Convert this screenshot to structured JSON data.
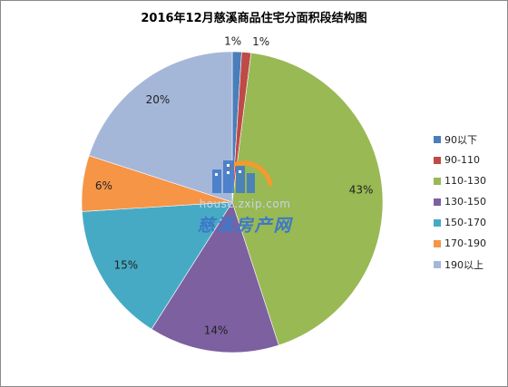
{
  "chart_data": {
    "type": "pie",
    "title": "2016年12月慈溪商品住宅分面积段结构图",
    "categories": [
      "90以下",
      "90-110",
      "110-130",
      "130-150",
      "150-170",
      "170-190",
      "190以上"
    ],
    "values": [
      1,
      1,
      43,
      14,
      15,
      6,
      20
    ],
    "labels": [
      "1%",
      "1%",
      "43%",
      "14%",
      "15%",
      "6%",
      "20%"
    ],
    "colors": [
      "#4a7ebb",
      "#be4b48",
      "#98b954",
      "#7d60a0",
      "#46aac5",
      "#f69546",
      "#a5b7d9"
    ],
    "legend_position": "right"
  },
  "watermark": {
    "url": "house.zxip.com",
    "brand": "慈溪房产网"
  }
}
